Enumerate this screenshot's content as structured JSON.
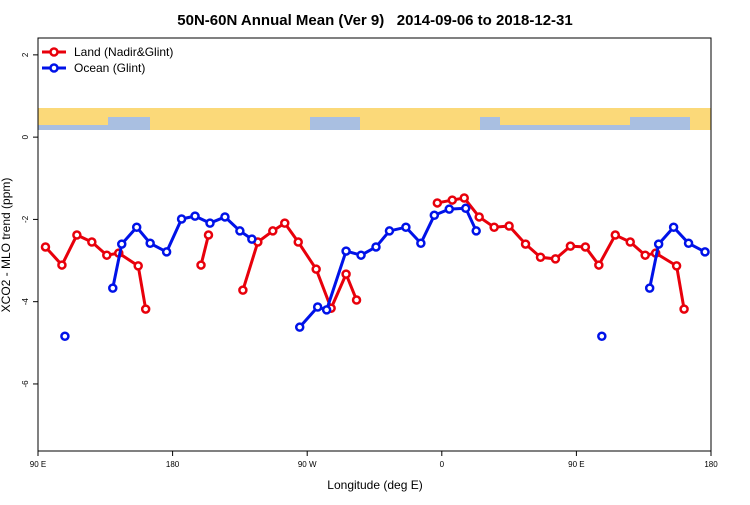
{
  "chart_data": {
    "type": "line",
    "title": "50N-60N Annual Mean (Ver 9)   2014-09-06 to 2018-12-31",
    "x_label": "Longitude (deg E)",
    "y_label": "XCO2 - MLO trend (ppm)",
    "xlim": [
      90,
      540
    ],
    "xticks": [
      {
        "value": 90,
        "label": "90 E"
      },
      180,
      {
        "value": 270,
        "label": "90 W"
      },
      {
        "value": 360,
        "label": "0"
      },
      {
        "value": 450,
        "label": "90 E"
      },
      {
        "value": 540,
        "label": "180"
      }
    ],
    "ylim": [
      -7.63,
      2.41
    ],
    "yticks": [
      -6,
      -4,
      -2,
      0,
      2
    ],
    "legend": "top-left",
    "series": [
      {
        "name": "Land (Nadir&Glint)",
        "color": "#e8000b",
        "x": [
          95,
          106,
          116,
          126,
          136,
          144,
          157,
          162,
          null,
          199,
          204,
          null,
          227,
          237,
          247,
          255,
          264,
          276,
          286,
          296,
          303,
          null,
          357,
          367,
          375,
          385,
          395,
          405,
          416,
          426,
          436,
          446,
          456,
          465,
          476,
          486,
          496,
          503,
          517,
          522
        ],
        "values": [
          -2.67,
          -3.11,
          -2.38,
          -2.55,
          -2.87,
          -2.82,
          -3.13,
          -4.18,
          null,
          -3.11,
          -2.38,
          null,
          -3.72,
          -2.55,
          -2.28,
          -2.09,
          -2.55,
          -3.21,
          -4.16,
          -3.33,
          -3.96,
          null,
          -1.6,
          -1.53,
          -1.48,
          -1.94,
          -2.19,
          -2.16,
          -2.6,
          -2.92,
          -2.96,
          -2.65,
          -2.67,
          -3.11,
          -2.38,
          -2.55,
          -2.87,
          -2.82,
          -3.13,
          -4.18
        ]
      },
      {
        "name": "Ocean (Glint)",
        "color": "#0012e8",
        "x": [
          108,
          null,
          140,
          146,
          156,
          165,
          176,
          186,
          195,
          205,
          215,
          225,
          233,
          null,
          265,
          277,
          283,
          296,
          306,
          316,
          325,
          336,
          346,
          355,
          365,
          376,
          383,
          null,
          467,
          null,
          499,
          505,
          515,
          525,
          536
        ],
        "values": [
          -4.84,
          null,
          -3.67,
          -2.6,
          -2.19,
          -2.58,
          -2.79,
          -1.99,
          -1.92,
          -2.09,
          -1.94,
          -2.28,
          -2.48,
          null,
          -4.62,
          -4.13,
          -4.2,
          -2.77,
          -2.87,
          -2.67,
          -2.28,
          -2.19,
          -2.58,
          -1.9,
          -1.75,
          -1.73,
          -2.28,
          null,
          -4.84,
          null,
          -3.67,
          -2.6,
          -2.19,
          -2.58,
          -2.79
        ]
      }
    ]
  }
}
